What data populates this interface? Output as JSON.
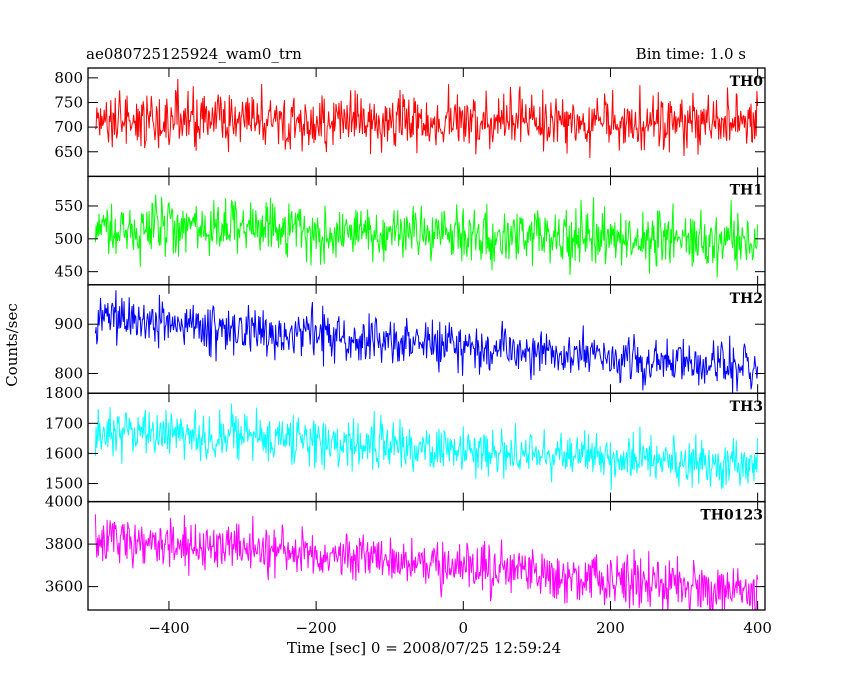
{
  "chart_data": {
    "type": "line",
    "title_left": "ae080725125924_wam0_trn",
    "title_right": "Bin time: 1.0 s",
    "xlabel": "Time [sec] 0 = 2008/07/25 12:59:24",
    "ylabel": "Counts/sec",
    "xlim": [
      -510,
      410
    ],
    "x_ticks": [
      -400,
      -200,
      0,
      200,
      400
    ],
    "x_tick_labels": [
      "−400",
      "−200",
      "0",
      "200",
      "400"
    ],
    "bin_time_s": 1.0,
    "x_range": [
      -500,
      400
    ],
    "panels": [
      {
        "name": "TH0",
        "color": "#ff0000",
        "ylim": [
          600,
          820
        ],
        "y_ticks": [
          650,
          700,
          750,
          800
        ],
        "y_tick_labels": [
          "650",
          "700",
          "750",
          "800"
        ],
        "trend": [
          [
            -500,
            712
          ],
          [
            400,
            712
          ]
        ],
        "noise_sd": 30
      },
      {
        "name": "TH1",
        "color": "#00ff00",
        "ylim": [
          430,
          595
        ],
        "y_ticks": [
          450,
          500,
          550
        ],
        "y_tick_labels": [
          "450",
          "500",
          "550"
        ],
        "trend": [
          [
            -500,
            515
          ],
          [
            -300,
            515
          ],
          [
            -100,
            507
          ],
          [
            400,
            500
          ]
        ],
        "noise_sd": 22
      },
      {
        "name": "TH2",
        "color": "#0000ff",
        "ylim": [
          760,
          980
        ],
        "y_ticks": [
          800,
          900
        ],
        "y_tick_labels": [
          "800",
          "900"
        ],
        "trend": [
          [
            -500,
            915
          ],
          [
            -300,
            890
          ],
          [
            0,
            855
          ],
          [
            400,
            815
          ]
        ],
        "noise_sd": 24
      },
      {
        "name": "TH3",
        "color": "#00ffff",
        "ylim": [
          1440,
          1800
        ],
        "y_ticks": [
          1500,
          1600,
          1700,
          1800
        ],
        "y_tick_labels": [
          "1500",
          "1600",
          "1700",
          "1800"
        ],
        "trend": [
          [
            -500,
            1680
          ],
          [
            -300,
            1655
          ],
          [
            0,
            1610
          ],
          [
            400,
            1555
          ]
        ],
        "noise_sd": 40
      },
      {
        "name": "TH0123",
        "color": "#ff00ff",
        "ylim": [
          3490,
          4000
        ],
        "y_ticks": [
          3600,
          3800,
          4000
        ],
        "y_tick_labels": [
          "3600",
          "3800",
          "4000"
        ],
        "trend": [
          [
            -500,
            3825
          ],
          [
            -300,
            3780
          ],
          [
            0,
            3690
          ],
          [
            400,
            3580
          ]
        ],
        "noise_sd": 60
      }
    ]
  }
}
